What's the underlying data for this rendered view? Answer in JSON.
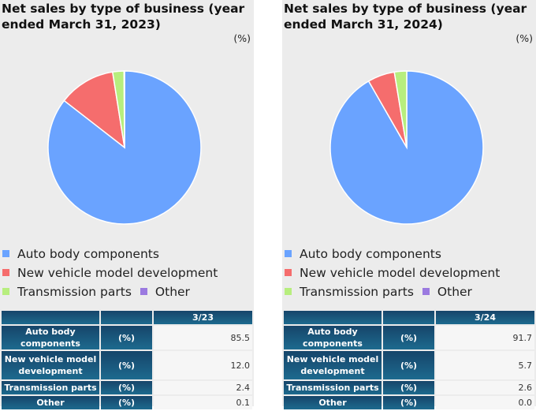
{
  "colors": {
    "Auto body components": "#6aa3ff",
    "New vehicle model development": "#f56d6d",
    "Transmission parts": "#b7ee7e",
    "Other": "#9b7ae0"
  },
  "panels": [
    {
      "title": "Net sales by type of business (year ended March 31, 2023)",
      "unit": "(%)",
      "period": "3/23"
    },
    {
      "title": "Net sales by type of business (year ended March 31, 2024)",
      "unit": "(%)",
      "period": "3/24"
    }
  ],
  "table_unit": "(%)",
  "chart_data": [
    {
      "type": "pie",
      "title": "Net sales by type of business (year ended March 31, 2023)",
      "categories": [
        "Auto body components",
        "New vehicle model development",
        "Transmission parts",
        "Other"
      ],
      "values": [
        85.5,
        12.0,
        2.4,
        0.1
      ],
      "value_labels": [
        "85.5",
        "12.0",
        "2.4",
        "0.1"
      ],
      "legend": "bottom"
    },
    {
      "type": "pie",
      "title": "Net sales by type of business (year ended March 31, 2024)",
      "categories": [
        "Auto body components",
        "New vehicle model development",
        "Transmission parts",
        "Other"
      ],
      "values": [
        91.7,
        5.7,
        2.6,
        0.0
      ],
      "value_labels": [
        "91.7",
        "5.7",
        "2.6",
        "0.0"
      ],
      "legend": "bottom"
    }
  ],
  "table_labels": [
    "Auto body components",
    "New vehicle model development",
    "Transmission parts",
    "Other"
  ]
}
